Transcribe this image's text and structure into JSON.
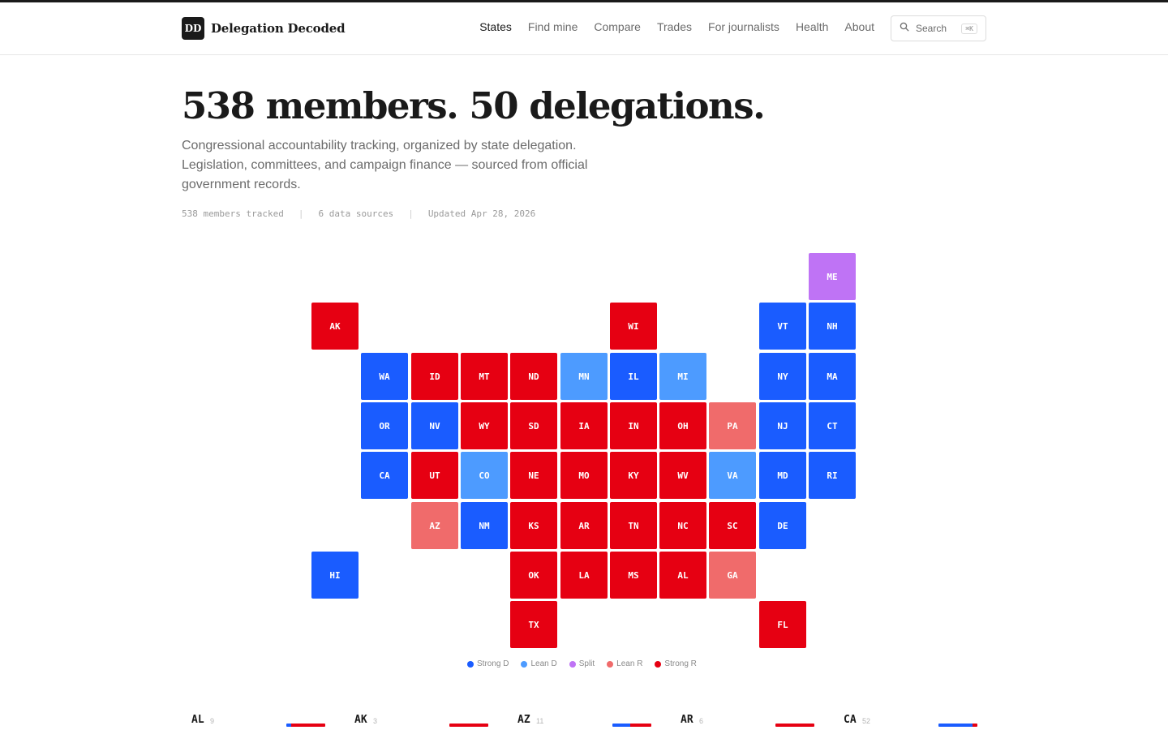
{
  "brand": {
    "mark": "DD",
    "name": "Delegation Decoded"
  },
  "nav": [
    {
      "label": "States",
      "active": true
    },
    {
      "label": "Find mine",
      "active": false
    },
    {
      "label": "Compare",
      "active": false
    },
    {
      "label": "Trades",
      "active": false
    },
    {
      "label": "For journalists",
      "active": false
    },
    {
      "label": "Health",
      "active": false
    },
    {
      "label": "About",
      "active": false
    }
  ],
  "search": {
    "label": "Search",
    "shortcut": "⌘K",
    "icon": "search-icon"
  },
  "hero": {
    "title": "538 members. 50 delegations.",
    "subtitle": "Congressional accountability tracking, organized by state delegation. Legislation, committees, and campaign finance — sourced from official government records."
  },
  "meta": {
    "members": "538 members tracked",
    "sources": "6 data sources",
    "updated": "Updated Apr 28, 2026",
    "separator": "|"
  },
  "colors": {
    "strong_d": "#1a5cff",
    "lean_d": "#4d9bff",
    "split": "#bf73f5",
    "lean_r": "#f06b6b",
    "strong_r": "#e60012"
  },
  "legend": [
    {
      "label": "Strong D",
      "key": "strong_d"
    },
    {
      "label": "Lean D",
      "key": "lean_d"
    },
    {
      "label": "Split",
      "key": "split"
    },
    {
      "label": "Lean R",
      "key": "lean_r"
    },
    {
      "label": "Strong R",
      "key": "strong_r"
    }
  ],
  "states": [
    {
      "abbr": "ME",
      "lean": "split"
    },
    {
      "abbr": "AK",
      "lean": "strong_r"
    },
    {
      "abbr": "WI",
      "lean": "strong_r"
    },
    {
      "abbr": "VT",
      "lean": "strong_d"
    },
    {
      "abbr": "NH",
      "lean": "strong_d"
    },
    {
      "abbr": "WA",
      "lean": "strong_d"
    },
    {
      "abbr": "ID",
      "lean": "strong_r"
    },
    {
      "abbr": "MT",
      "lean": "strong_r"
    },
    {
      "abbr": "ND",
      "lean": "strong_r"
    },
    {
      "abbr": "MN",
      "lean": "lean_d"
    },
    {
      "abbr": "IL",
      "lean": "strong_d"
    },
    {
      "abbr": "MI",
      "lean": "lean_d"
    },
    {
      "abbr": "NY",
      "lean": "strong_d"
    },
    {
      "abbr": "MA",
      "lean": "strong_d"
    },
    {
      "abbr": "OR",
      "lean": "strong_d"
    },
    {
      "abbr": "NV",
      "lean": "strong_d"
    },
    {
      "abbr": "WY",
      "lean": "strong_r"
    },
    {
      "abbr": "SD",
      "lean": "strong_r"
    },
    {
      "abbr": "IA",
      "lean": "strong_r"
    },
    {
      "abbr": "IN",
      "lean": "strong_r"
    },
    {
      "abbr": "OH",
      "lean": "strong_r"
    },
    {
      "abbr": "PA",
      "lean": "lean_r"
    },
    {
      "abbr": "NJ",
      "lean": "strong_d"
    },
    {
      "abbr": "CT",
      "lean": "strong_d"
    },
    {
      "abbr": "CA",
      "lean": "strong_d"
    },
    {
      "abbr": "UT",
      "lean": "strong_r"
    },
    {
      "abbr": "CO",
      "lean": "lean_d"
    },
    {
      "abbr": "NE",
      "lean": "strong_r"
    },
    {
      "abbr": "MO",
      "lean": "strong_r"
    },
    {
      "abbr": "KY",
      "lean": "strong_r"
    },
    {
      "abbr": "WV",
      "lean": "strong_r"
    },
    {
      "abbr": "VA",
      "lean": "lean_d"
    },
    {
      "abbr": "MD",
      "lean": "strong_d"
    },
    {
      "abbr": "RI",
      "lean": "strong_d"
    },
    {
      "abbr": "AZ",
      "lean": "lean_r"
    },
    {
      "abbr": "NM",
      "lean": "strong_d"
    },
    {
      "abbr": "KS",
      "lean": "strong_r"
    },
    {
      "abbr": "AR",
      "lean": "strong_r"
    },
    {
      "abbr": "TN",
      "lean": "strong_r"
    },
    {
      "abbr": "NC",
      "lean": "strong_r"
    },
    {
      "abbr": "SC",
      "lean": "strong_r"
    },
    {
      "abbr": "DE",
      "lean": "strong_d"
    },
    {
      "abbr": "HI",
      "lean": "strong_d"
    },
    {
      "abbr": "OK",
      "lean": "strong_r"
    },
    {
      "abbr": "LA",
      "lean": "strong_r"
    },
    {
      "abbr": "MS",
      "lean": "strong_r"
    },
    {
      "abbr": "AL",
      "lean": "strong_r"
    },
    {
      "abbr": "GA",
      "lean": "lean_r"
    },
    {
      "abbr": "TX",
      "lean": "strong_r"
    },
    {
      "abbr": "FL",
      "lean": "strong_r"
    }
  ],
  "cards": [
    {
      "abbr": "AL",
      "count": "9",
      "dem_share": 0.12
    },
    {
      "abbr": "AK",
      "count": "3",
      "dem_share": 0.0
    },
    {
      "abbr": "AZ",
      "count": "11",
      "dem_share": 0.45
    },
    {
      "abbr": "AR",
      "count": "6",
      "dem_share": 0.0
    },
    {
      "abbr": "CA",
      "count": "52",
      "dem_share": 0.88
    }
  ]
}
